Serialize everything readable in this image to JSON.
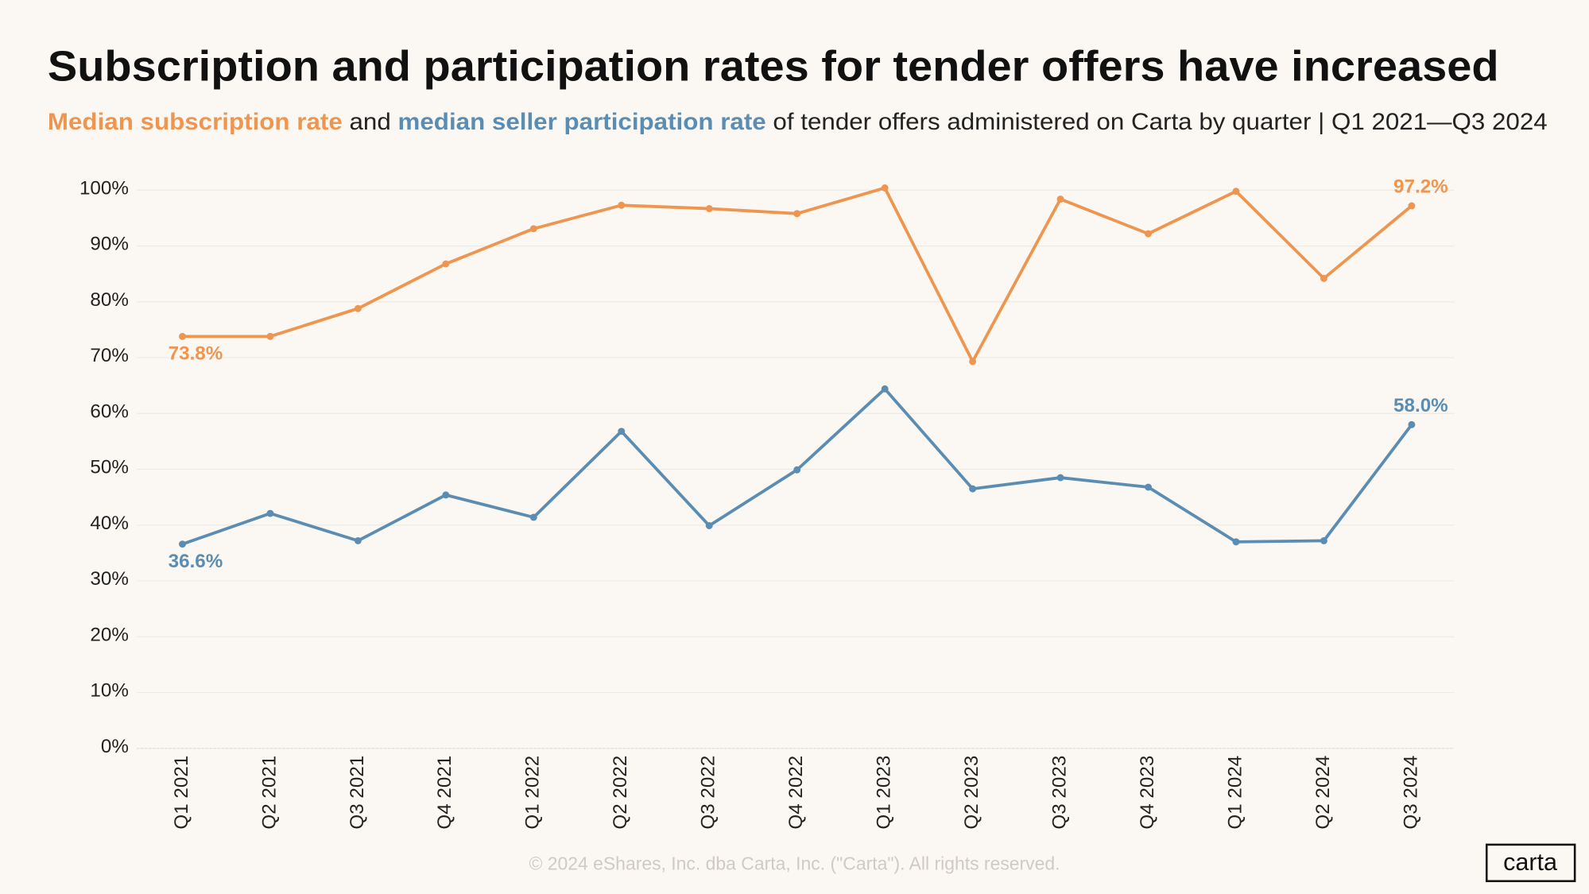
{
  "chart_data": {
    "type": "line",
    "title": "Subscription and participation rates for tender offers have increased",
    "subtitle_parts": [
      "and",
      "of tender offers administered on Carta by quarter | Q1 2021—Q3 2024"
    ],
    "categories": [
      "Q1 2021",
      "Q2 2021",
      "Q3 2021",
      "Q4 2021",
      "Q1 2022",
      "Q2 2022",
      "Q3 2022",
      "Q4 2022",
      "Q1 2023",
      "Q2 2023",
      "Q3 2023",
      "Q4 2023",
      "Q1 2024",
      "Q2 2024",
      "Q3 2024"
    ],
    "series": [
      {
        "name": "Median subscription rate",
        "color": "#ee9550",
        "values": [
          73.8,
          73.8,
          78.8,
          86.8,
          93.1,
          97.3,
          96.7,
          95.8,
          100.4,
          69.3,
          98.4,
          92.2,
          99.8,
          84.2,
          97.2
        ],
        "value_labels": [
          "73.8%",
          null,
          null,
          null,
          null,
          null,
          null,
          null,
          null,
          null,
          null,
          null,
          null,
          null,
          "97.2%"
        ]
      },
      {
        "name": "median seller participation rate",
        "color": "#5b8db3",
        "values": [
          36.6,
          42.1,
          37.2,
          45.4,
          41.4,
          56.8,
          39.9,
          49.9,
          64.4,
          46.5,
          48.5,
          46.8,
          37.0,
          37.2,
          58.0
        ],
        "value_labels": [
          "36.6%",
          null,
          null,
          null,
          null,
          null,
          null,
          null,
          null,
          null,
          null,
          null,
          null,
          null,
          "58.0%"
        ]
      }
    ],
    "ylim": [
      0,
      100
    ],
    "yticks": [
      {
        "value": 0,
        "label": "0%"
      },
      {
        "value": 10,
        "label": "10%"
      },
      {
        "value": 20,
        "label": "20%"
      },
      {
        "value": 30,
        "label": "30%"
      },
      {
        "value": 40,
        "label": "40%"
      },
      {
        "value": 50,
        "label": "50%"
      },
      {
        "value": 60,
        "label": "60%"
      },
      {
        "value": 70,
        "label": "70%"
      },
      {
        "value": 80,
        "label": "80%"
      },
      {
        "value": 90,
        "label": "90%"
      },
      {
        "value": 100,
        "label": "100%"
      }
    ],
    "grid": true,
    "footer": "© 2024 eShares, Inc. dba Carta, Inc. (\"Carta\"). All rights reserved.",
    "logo": "carta"
  }
}
